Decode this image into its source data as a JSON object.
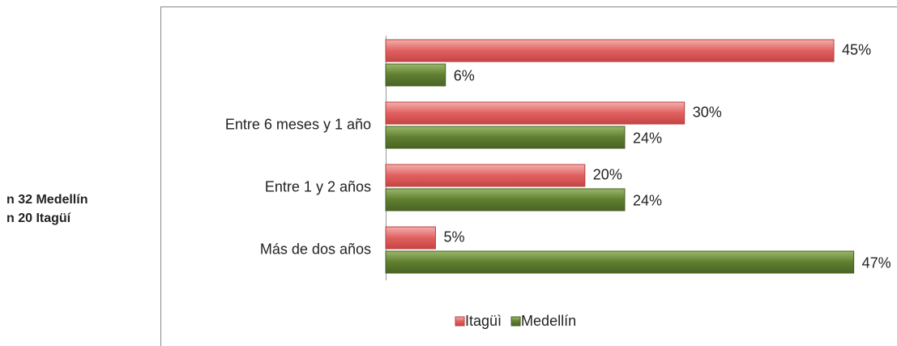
{
  "chart_data": {
    "type": "hbar",
    "annotations": [
      "n 32 Medellín",
      "n 20 Itagüí"
    ],
    "categories": [
      null,
      "Entre 6 meses y 1 año",
      "Entre 1 y 2 años",
      "Más de dos años"
    ],
    "series": [
      {
        "name": "Itagüì",
        "color": "#e06060",
        "values": [
          45,
          30,
          20,
          5
        ],
        "value_labels": [
          "45%",
          "30%",
          "20%",
          "5%"
        ]
      },
      {
        "name": "Medellín",
        "color": "#5f7f30",
        "values": [
          6,
          24,
          24,
          47
        ],
        "value_labels": [
          "6%",
          "24%",
          "24%",
          "47%"
        ]
      }
    ],
    "legend": "bottom"
  }
}
